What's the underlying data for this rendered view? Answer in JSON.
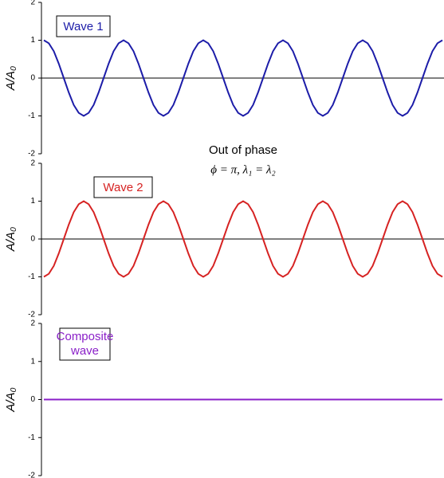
{
  "chart_data": [
    {
      "type": "line",
      "ylabel": "A/A₀",
      "annotation": [
        "Out of phase",
        "ϕ = π, λ₁ = λ₂"
      ],
      "x": [
        0,
        1,
        2,
        3,
        4,
        5,
        6,
        7,
        8,
        9,
        10,
        11,
        12,
        13,
        14,
        15,
        16,
        17,
        18,
        19,
        20,
        21,
        22,
        23,
        24,
        25,
        26,
        27,
        28,
        29,
        30,
        31,
        32,
        33,
        34,
        35,
        36,
        37,
        38,
        39,
        40,
        41,
        42,
        43,
        44,
        45,
        46,
        47,
        48,
        49,
        50,
        51,
        52,
        53,
        54,
        55,
        56,
        57,
        58,
        59,
        60,
        61,
        62,
        63,
        64,
        65,
        66,
        67,
        68,
        69,
        70,
        71,
        72,
        73,
        74,
        75,
        76,
        77,
        78,
        79,
        80
      ],
      "series": [
        {
          "name": "Wave 1",
          "color": "#1c1ca8",
          "values": [
            1,
            0.92,
            0.71,
            0.38,
            0,
            -0.38,
            -0.71,
            -0.92,
            -1,
            -0.92,
            -0.71,
            -0.38,
            0,
            0.38,
            0.71,
            0.92,
            1,
            0.92,
            0.71,
            0.38,
            0,
            -0.38,
            -0.71,
            -0.92,
            -1,
            -0.92,
            -0.71,
            -0.38,
            0,
            0.38,
            0.71,
            0.92,
            1,
            0.92,
            0.71,
            0.38,
            0,
            -0.38,
            -0.71,
            -0.92,
            -1,
            -0.92,
            -0.71,
            -0.38,
            0,
            0.38,
            0.71,
            0.92,
            1,
            0.92,
            0.71,
            0.38,
            0,
            -0.38,
            -0.71,
            -0.92,
            -1,
            -0.92,
            -0.71,
            -0.38,
            0,
            0.38,
            0.71,
            0.92,
            1,
            0.92,
            0.71,
            0.38,
            0,
            -0.38,
            -0.71,
            -0.92,
            -1,
            -0.92,
            -0.71,
            -0.38,
            0,
            0.38,
            0.71,
            0.92,
            1
          ]
        }
      ],
      "xlim": [
        0,
        80
      ],
      "ylim": [
        -2,
        2
      ],
      "yticks": [
        -2,
        -1,
        0,
        1,
        2
      ]
    },
    {
      "type": "line",
      "ylabel": "A/A₀",
      "x": [
        0,
        1,
        2,
        3,
        4,
        5,
        6,
        7,
        8,
        9,
        10,
        11,
        12,
        13,
        14,
        15,
        16,
        17,
        18,
        19,
        20,
        21,
        22,
        23,
        24,
        25,
        26,
        27,
        28,
        29,
        30,
        31,
        32,
        33,
        34,
        35,
        36,
        37,
        38,
        39,
        40,
        41,
        42,
        43,
        44,
        45,
        46,
        47,
        48,
        49,
        50,
        51,
        52,
        53,
        54,
        55,
        56,
        57,
        58,
        59,
        60,
        61,
        62,
        63,
        64,
        65,
        66,
        67,
        68,
        69,
        70,
        71,
        72,
        73,
        74,
        75,
        76,
        77,
        78,
        79,
        80
      ],
      "series": [
        {
          "name": "Wave 2",
          "color": "#d62222",
          "values": [
            -1,
            -0.92,
            -0.71,
            -0.38,
            0,
            0.38,
            0.71,
            0.92,
            1,
            0.92,
            0.71,
            0.38,
            0,
            -0.38,
            -0.71,
            -0.92,
            -1,
            -0.92,
            -0.71,
            -0.38,
            0,
            0.38,
            0.71,
            0.92,
            1,
            0.92,
            0.71,
            0.38,
            0,
            -0.38,
            -0.71,
            -0.92,
            -1,
            -0.92,
            -0.71,
            -0.38,
            0,
            0.38,
            0.71,
            0.92,
            1,
            0.92,
            0.71,
            0.38,
            0,
            -0.38,
            -0.71,
            -0.92,
            -1,
            -0.92,
            -0.71,
            -0.38,
            0,
            0.38,
            0.71,
            0.92,
            1,
            0.92,
            0.71,
            0.38,
            0,
            -0.38,
            -0.71,
            -0.92,
            -1,
            -0.92,
            -0.71,
            -0.38,
            0,
            0.38,
            0.71,
            0.92,
            1,
            0.92,
            0.71,
            0.38,
            0,
            -0.38,
            -0.71,
            -0.92,
            -1
          ]
        }
      ],
      "xlim": [
        0,
        80
      ],
      "ylim": [
        -2,
        2
      ],
      "yticks": [
        -2,
        -1,
        0,
        1,
        2
      ]
    },
    {
      "type": "line",
      "ylabel": "A/A₀",
      "x": [
        0,
        1,
        2,
        3,
        4,
        5,
        6,
        7,
        8,
        9,
        10,
        11,
        12,
        13,
        14,
        15,
        16,
        17,
        18,
        19,
        20,
        21,
        22,
        23,
        24,
        25,
        26,
        27,
        28,
        29,
        30,
        31,
        32,
        33,
        34,
        35,
        36,
        37,
        38,
        39,
        40,
        41,
        42,
        43,
        44,
        45,
        46,
        47,
        48,
        49,
        50,
        51,
        52,
        53,
        54,
        55,
        56,
        57,
        58,
        59,
        60,
        61,
        62,
        63,
        64,
        65,
        66,
        67,
        68,
        69,
        70,
        71,
        72,
        73,
        74,
        75,
        76,
        77,
        78,
        79,
        80
      ],
      "series": [
        {
          "name": [
            "Composite",
            "wave"
          ],
          "color": "#8a1fc8",
          "values": [
            0,
            0,
            0,
            0,
            0,
            0,
            0,
            0,
            0,
            0,
            0,
            0,
            0,
            0,
            0,
            0,
            0,
            0,
            0,
            0,
            0,
            0,
            0,
            0,
            0,
            0,
            0,
            0,
            0,
            0,
            0,
            0,
            0,
            0,
            0,
            0,
            0,
            0,
            0,
            0,
            0,
            0,
            0,
            0,
            0,
            0,
            0,
            0,
            0,
            0,
            0,
            0,
            0,
            0,
            0,
            0,
            0,
            0,
            0,
            0,
            0,
            0,
            0,
            0,
            0,
            0,
            0,
            0,
            0,
            0,
            0,
            0,
            0,
            0,
            0,
            0,
            0,
            0,
            0,
            0,
            0
          ]
        }
      ],
      "xlim": [
        0,
        80
      ],
      "ylim": [
        -2,
        2
      ],
      "yticks": [
        -2,
        -1,
        0,
        1,
        2
      ]
    }
  ]
}
